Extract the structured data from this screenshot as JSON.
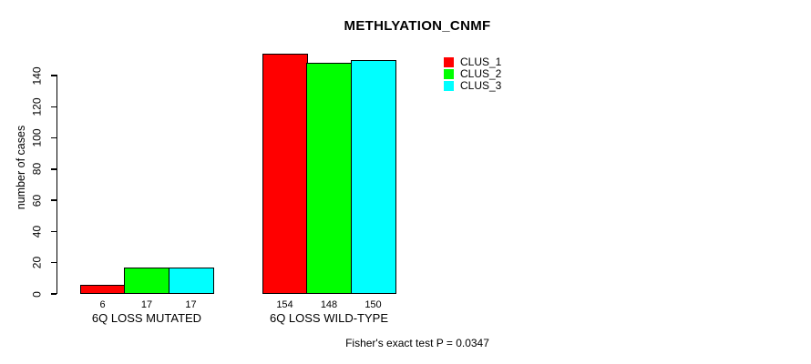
{
  "chart_data": {
    "type": "bar",
    "title": "METHLYATION_CNMF",
    "xlabel": "",
    "ylabel": "number of cases",
    "ylim": [
      0,
      160
    ],
    "yticks": [
      0,
      20,
      40,
      60,
      80,
      100,
      120,
      140
    ],
    "grid": false,
    "legend_position": "top-right",
    "categories": [
      "6Q LOSS MUTATED",
      "6Q LOSS WILD-TYPE"
    ],
    "series": [
      {
        "name": "CLUS_1",
        "color": "#ff0000",
        "values": [
          6,
          154
        ]
      },
      {
        "name": "CLUS_2",
        "color": "#00ff00",
        "values": [
          17,
          148
        ]
      },
      {
        "name": "CLUS_3",
        "color": "#00ffff",
        "values": [
          17,
          150
        ]
      }
    ],
    "annotation": "Fisher's exact test P = 0.0347"
  },
  "colors": {
    "background": "#ffffff",
    "axis": "#000000",
    "bar_border": "#000000"
  }
}
